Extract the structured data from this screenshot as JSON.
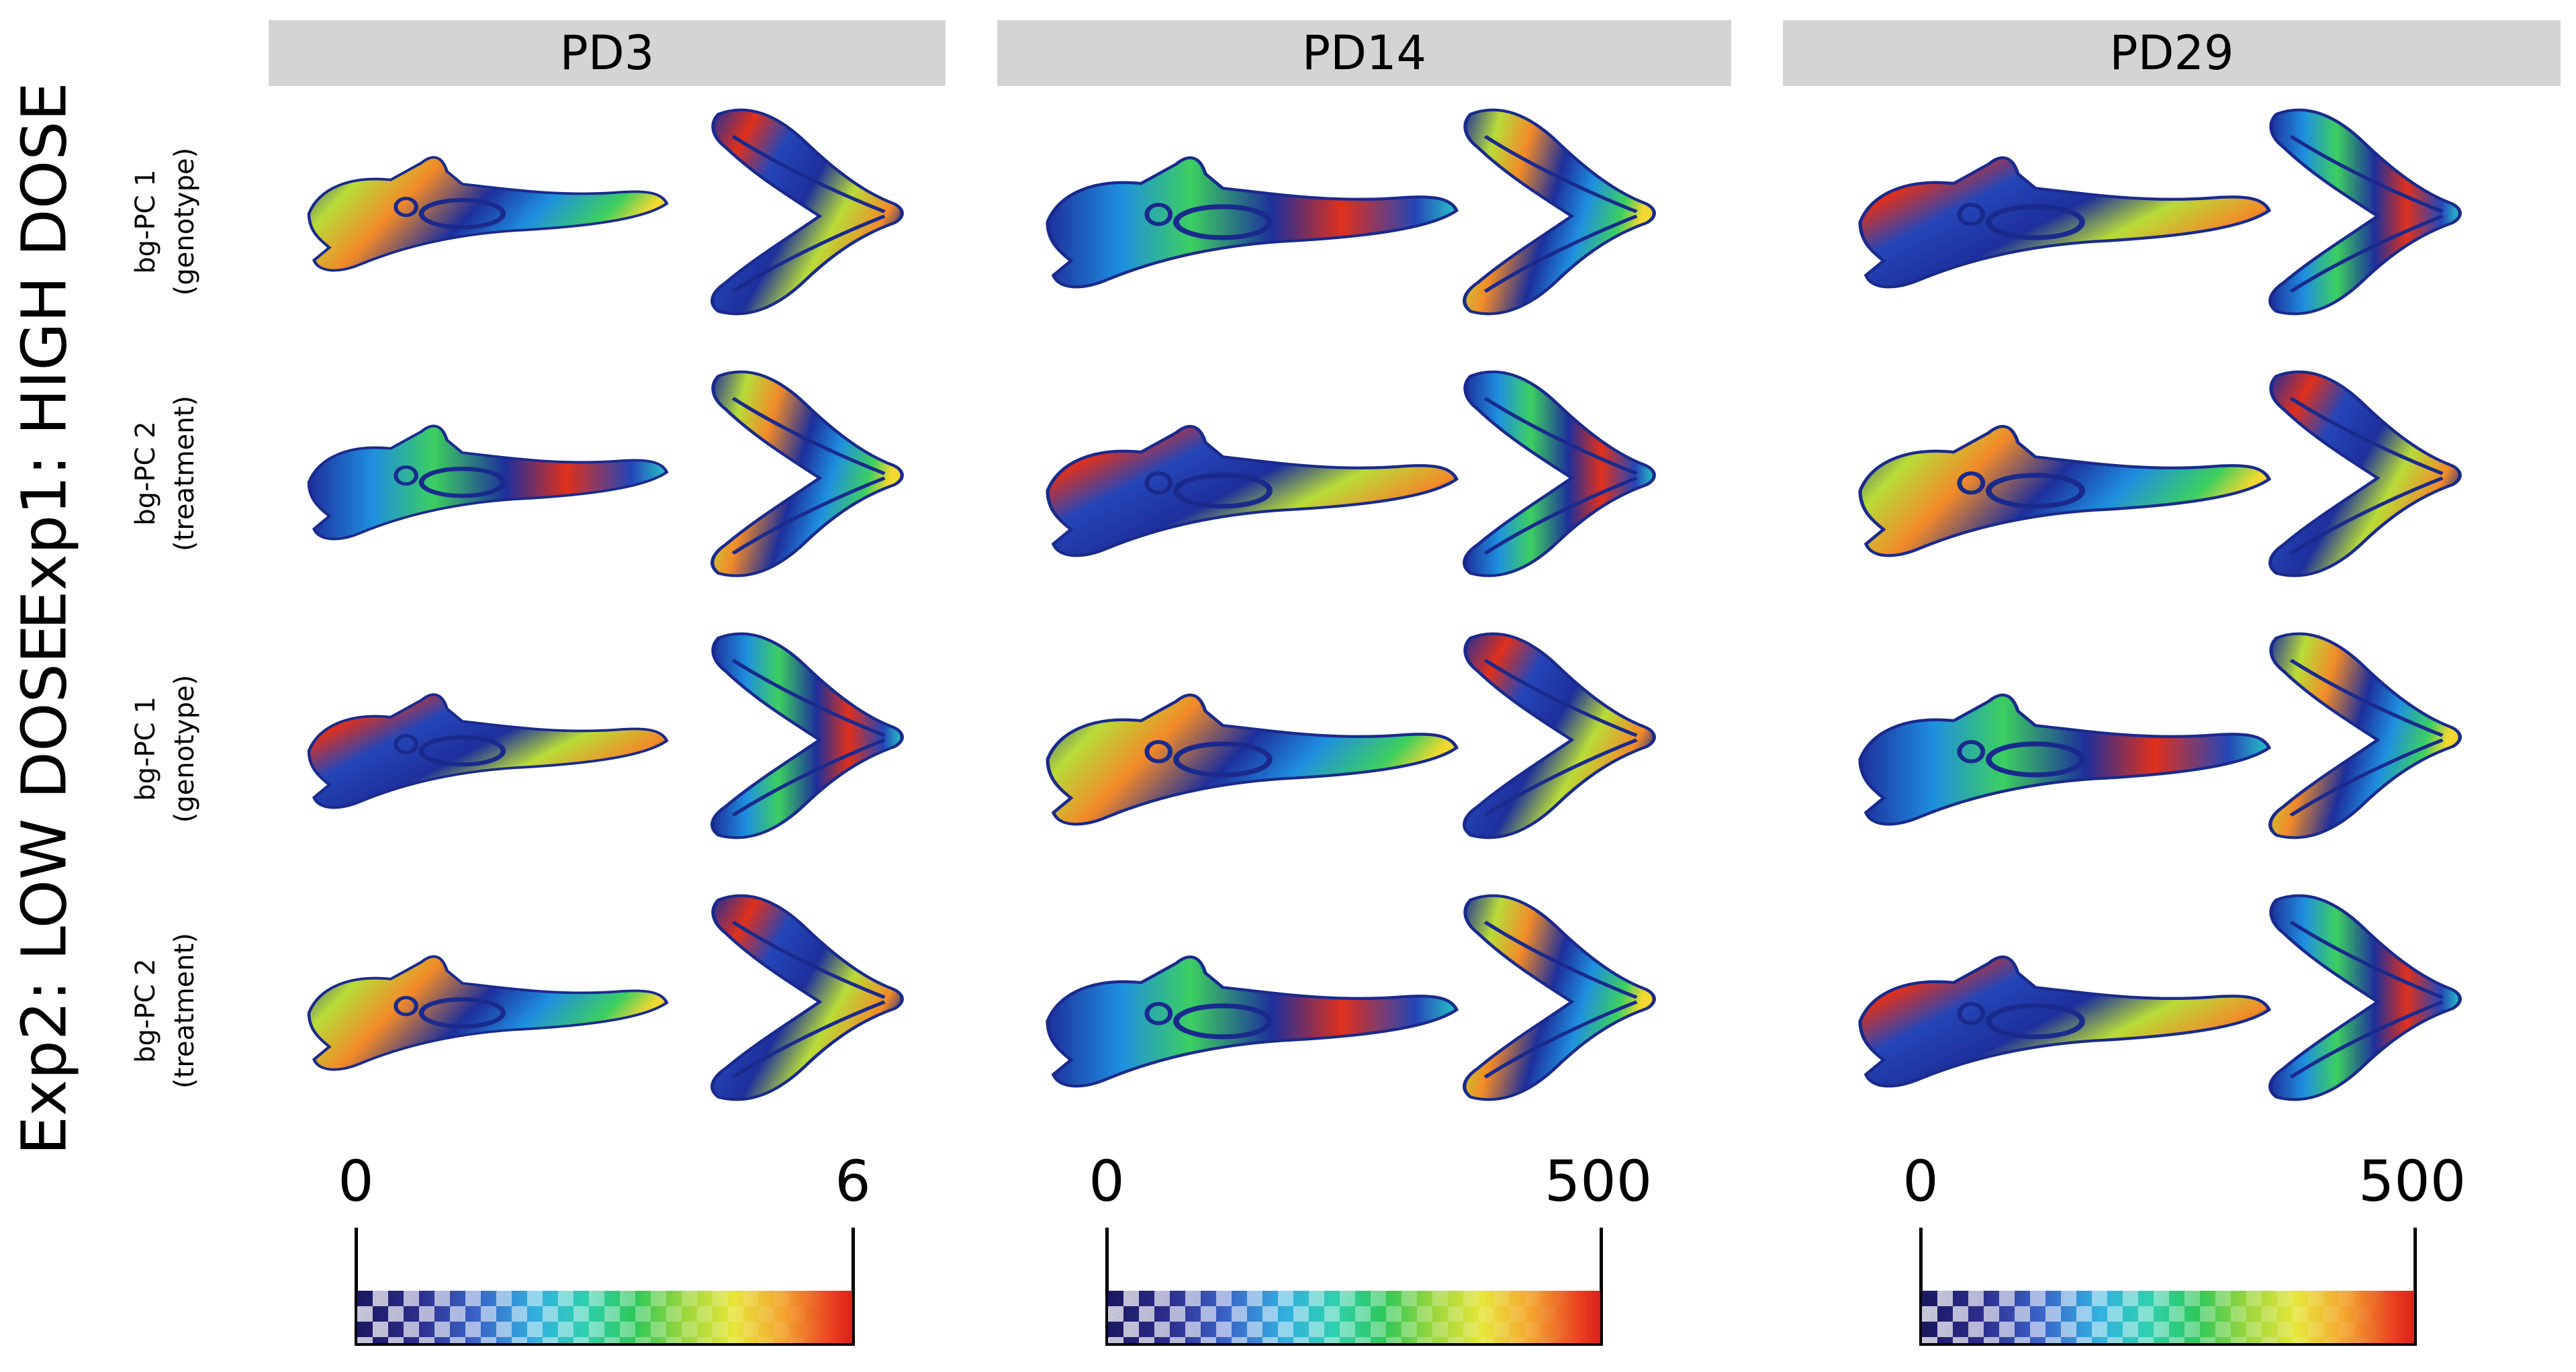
{
  "columns": [
    {
      "label": "PD3"
    },
    {
      "label": "PD14"
    },
    {
      "label": "PD29"
    }
  ],
  "experiments": [
    {
      "label": "Exp1: HIGH DOSE"
    },
    {
      "label": "Exp2: LOW DOSE"
    }
  ],
  "rows": [
    {
      "line1": "bg-PC 1",
      "line2": "(genotype)"
    },
    {
      "line1": "bg-PC 2",
      "line2": "(treatment)"
    },
    {
      "line1": "bg-PC 1",
      "line2": "(genotype)"
    },
    {
      "line1": "bg-PC 2",
      "line2": "(treatment)"
    }
  ],
  "scales": [
    {
      "min": "0",
      "max": "6"
    },
    {
      "min": "0",
      "max": "500"
    },
    {
      "min": "0",
      "max": "500"
    }
  ],
  "colors": {
    "low": "#1a1860",
    "mid": "#2ec85a",
    "high": "#d9201a",
    "header_bg": "#d4d4d4"
  }
}
